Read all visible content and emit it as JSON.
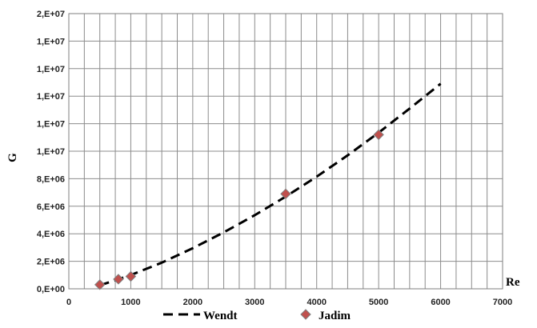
{
  "chart_data": {
    "type": "scatter",
    "xlabel": "Re",
    "ylabel": "G",
    "xlim": [
      0,
      7000
    ],
    "ylim": [
      0,
      20000000
    ],
    "x_ticks": [
      0,
      1000,
      2000,
      3000,
      4000,
      5000,
      6000,
      7000
    ],
    "x_tick_labels": [
      "0",
      "1000",
      "2000",
      "3000",
      "4000",
      "5000",
      "6000",
      "7000"
    ],
    "y_ticks": [
      0,
      2000000,
      4000000,
      6000000,
      8000000,
      10000000,
      12000000,
      14000000,
      16000000,
      18000000,
      20000000
    ],
    "y_tick_labels": [
      "0,E+00",
      "2,E+06",
      "4,E+06",
      "6,E+06",
      "8,E+06",
      "1,E+07",
      "1,E+07",
      "1,E+07",
      "1,E+07",
      "1,E+07",
      "2,E+07"
    ],
    "grid": true,
    "legend_position": "bottom",
    "series": [
      {
        "name": "Wendt",
        "style": "dashed-line",
        "color": "#000000",
        "x": [
          500,
          1000,
          1500,
          2000,
          2500,
          3000,
          3500,
          4000,
          4500,
          5000,
          5500,
          6000
        ],
        "y": [
          250000,
          1000000,
          1900000,
          2950000,
          4100000,
          5350000,
          6700000,
          8150000,
          9700000,
          11350000,
          13100000,
          14900000
        ]
      },
      {
        "name": "Jadim",
        "style": "diamond-markers",
        "color": "#c0504d",
        "x": [
          500,
          800,
          1000,
          3500,
          5000
        ],
        "y": [
          300000,
          700000,
          900000,
          6900000,
          11200000
        ]
      }
    ]
  }
}
